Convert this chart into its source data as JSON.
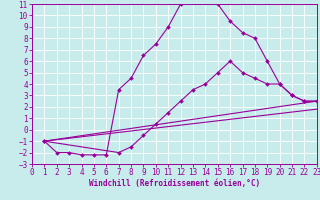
{
  "xlabel": "Windchill (Refroidissement éolien,°C)",
  "bg_color": "#c8ecec",
  "grid_color": "#ffffff",
  "line_color": "#990099",
  "xmin": 0,
  "xmax": 23,
  "ymin": -3,
  "ymax": 11,
  "curve1_x": [
    1,
    2,
    3,
    4,
    5,
    6,
    7,
    8,
    9,
    10,
    11,
    12,
    13,
    14,
    15,
    16,
    17,
    18,
    19,
    20,
    21,
    22,
    23
  ],
  "curve1_y": [
    -1,
    -2,
    -2,
    -2.2,
    -2.2,
    -2.2,
    3.5,
    4.5,
    6.5,
    7.5,
    9,
    11,
    11.2,
    11.2,
    11,
    9.5,
    8.5,
    8,
    6,
    4,
    3,
    2.5,
    2.5
  ],
  "curve2_x": [
    1,
    7,
    8,
    9,
    10,
    11,
    12,
    13,
    14,
    15,
    16,
    17,
    18,
    19,
    20,
    21,
    22,
    23
  ],
  "curve2_y": [
    -1,
    -2,
    -1.5,
    -0.5,
    0.5,
    1.5,
    2.5,
    3.5,
    4,
    5,
    6,
    5,
    4.5,
    4,
    4,
    3,
    2.5,
    2.5
  ],
  "line1_x": [
    1,
    23
  ],
  "line1_y": [
    -1,
    2.5
  ],
  "line2_x": [
    1,
    23
  ],
  "line2_y": [
    -1,
    1.8
  ],
  "marker_size": 2.0,
  "line_width": 0.8,
  "tick_fontsize": 5.5,
  "xlabel_fontsize": 5.5
}
